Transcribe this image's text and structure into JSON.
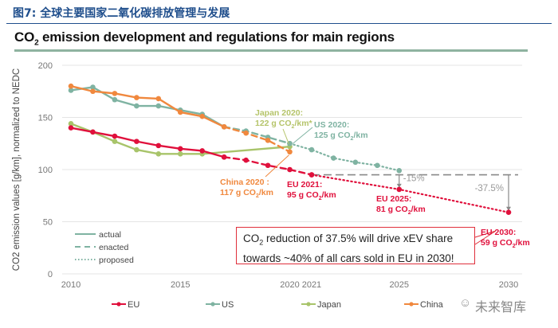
{
  "figure_label": "图7: 全球主要国家二氧化碳排放管理与发展",
  "watermark": "未来智库",
  "chart_data": {
    "type": "line",
    "title_prefix": "CO",
    "title_sub": "2",
    "title_rest": " emission development and regulations for main regions",
    "ylabel": "CO2 emission values [g/km], normalized to NEDC",
    "xlabel": "",
    "ylim": [
      0,
      200
    ],
    "xlim": [
      2010,
      2030
    ],
    "yticks": [
      0,
      50,
      100,
      150,
      200
    ],
    "xticks": [
      2010,
      2015,
      2020,
      2021,
      2025,
      2030
    ],
    "grid": true,
    "legend_position": "bottom",
    "style_legend": [
      {
        "label": "actual",
        "style": "solid"
      },
      {
        "label": "enacted",
        "style": "dashed"
      },
      {
        "label": "proposed",
        "style": "dotted"
      }
    ],
    "series": [
      {
        "name": "EU",
        "color": "#e0103c",
        "actual": {
          "x": [
            2010,
            2011,
            2012,
            2013,
            2014,
            2015,
            2016,
            2017
          ],
          "y": [
            140,
            136,
            132,
            127,
            123,
            120,
            118,
            112
          ]
        },
        "enacted": {
          "x": [
            2017,
            2018,
            2019,
            2020,
            2021
          ],
          "y": [
            112,
            109,
            104,
            100,
            95
          ]
        },
        "proposed": {
          "x": [
            2021,
            2025,
            2030
          ],
          "y": [
            95,
            81,
            59
          ]
        }
      },
      {
        "name": "US",
        "color": "#7fb3a2",
        "actual": {
          "x": [
            2010,
            2011,
            2012,
            2013,
            2014,
            2015,
            2016,
            2017
          ],
          "y": [
            176,
            179,
            167,
            161,
            161,
            157,
            153,
            141
          ]
        },
        "enacted": {
          "x": [
            2017,
            2018,
            2019,
            2020
          ],
          "y": [
            141,
            137,
            131,
            125
          ]
        },
        "proposed": {
          "x": [
            2020,
            2021,
            2022,
            2023,
            2024,
            2025
          ],
          "y": [
            125,
            119,
            111,
            107,
            104,
            99
          ]
        }
      },
      {
        "name": "Japan",
        "color": "#a8c46a",
        "actual": {
          "x": [
            2010,
            2011,
            2012,
            2013,
            2014,
            2015,
            2016,
            2020
          ],
          "y": [
            144,
            136,
            127,
            119,
            115,
            115,
            115,
            122
          ]
        },
        "enacted": {
          "x": [],
          "y": []
        },
        "proposed": {
          "x": [],
          "y": []
        }
      },
      {
        "name": "China",
        "color": "#f0883e",
        "actual": {
          "x": [
            2010,
            2011,
            2012,
            2013,
            2014,
            2015,
            2016,
            2017
          ],
          "y": [
            180,
            175,
            173,
            169,
            168,
            155,
            151,
            141
          ]
        },
        "enacted": {
          "x": [
            2017,
            2018,
            2019,
            2020
          ],
          "y": [
            141,
            135,
            128,
            117
          ]
        },
        "proposed": {
          "x": [],
          "y": []
        }
      }
    ],
    "reference_line": {
      "y": 95,
      "x_from": 2021,
      "x_to": 2030,
      "color": "#888888"
    },
    "reductions": [
      {
        "x": 2025,
        "from": 95,
        "to": 81,
        "label": "-15%"
      },
      {
        "x": 2030,
        "from": 95,
        "to": 59,
        "label": "-37.5%"
      }
    ],
    "annotations": {
      "japan": {
        "line1": "Japan 2020:",
        "line2a": "122 g CO",
        "line2b": "2",
        "line2c": "/km*"
      },
      "us": {
        "line1": "US 2020:",
        "line2a": "125 g CO",
        "line2b": "2",
        "line2c": "/km"
      },
      "china": {
        "line1": "China 2020 :",
        "line2a": "117 g CO",
        "line2b": "2",
        "line2c": "/km"
      },
      "eu2021": {
        "line1": "EU 2021:",
        "line2a": "95 g CO",
        "line2b": "2",
        "line2c": "/km"
      },
      "eu2025": {
        "line1": "EU 2025:",
        "line2a": "81 g CO",
        "line2b": "2",
        "line2c": "/km"
      },
      "eu2030": {
        "line1": "EU 2030:",
        "line2a": "59 g CO",
        "line2b": "2",
        "line2c": "/km"
      }
    },
    "callout": {
      "a": "CO",
      "b": "2",
      "c": " reduction of 37.5% will drive xEV share",
      "d": "towards ~40% of all cars sold in EU in 2030!"
    }
  }
}
